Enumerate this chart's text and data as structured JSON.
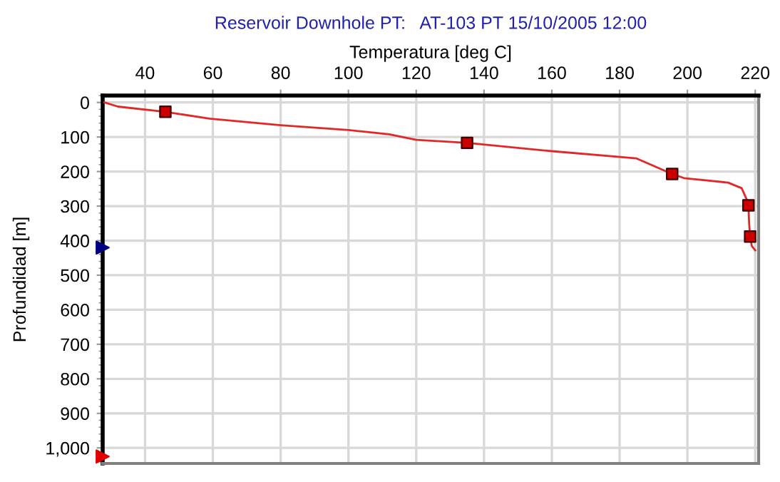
{
  "chart_data": {
    "type": "line",
    "title": "Reservoir Downhole PT:   AT-103 PT 15/10/2005 12:00",
    "xlabel": "Temperatura [deg C]",
    "ylabel": "Profundidad [m]",
    "series": [
      {
        "color": "#e02828",
        "marker": "none",
        "x": [
          28,
          32,
          46,
          59,
          80,
          100,
          112,
          120,
          135,
          160,
          185,
          195.5,
          199,
          212,
          216,
          217.5,
          218,
          218.2,
          218.5,
          219,
          220
        ],
        "values": [
          0,
          12,
          27,
          47,
          66,
          80,
          92,
          108,
          117,
          141,
          162,
          207,
          219,
          232,
          248,
          281,
          298,
          349,
          388,
          416,
          428
        ]
      },
      {
        "type": "scatter",
        "color": "#cc0000",
        "marker": "square",
        "x": [
          46,
          135,
          195.5,
          218,
          218.5
        ],
        "values": [
          27,
          117,
          207,
          298,
          388
        ]
      },
      {
        "type": "scatter",
        "color": "#000080",
        "marker": "triangle",
        "x": [
          27.5
        ],
        "values": [
          420
        ]
      },
      {
        "type": "scatter",
        "color": "#e00000",
        "marker": "triangle",
        "x": [
          27.5
        ],
        "values": [
          1025
        ]
      }
    ],
    "xlim": [
      27.5,
      221
    ],
    "xticks": [
      40,
      60,
      80,
      100,
      120,
      140,
      160,
      180,
      200,
      220
    ],
    "ylim": [
      1045,
      -20
    ],
    "yticks": [
      0,
      100,
      200,
      300,
      400,
      500,
      600,
      700,
      800,
      900,
      {
        "value": 1000,
        "label": "1,000"
      }
    ],
    "grid": true
  }
}
